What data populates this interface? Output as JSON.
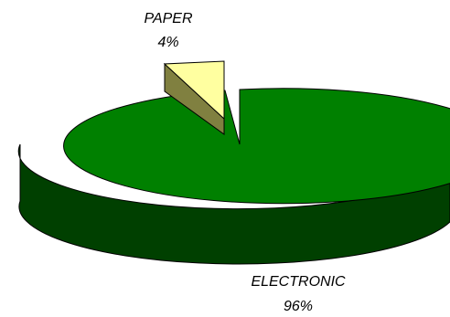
{
  "chart_data": {
    "type": "pie",
    "title": "",
    "style": "3d-exploded",
    "legend": "none",
    "slices": [
      {
        "label": "ELECTRONIC",
        "value": 96,
        "value_label": "96%",
        "color_top": "#008000",
        "color_side": "#004000"
      },
      {
        "label": "PAPER",
        "value": 4,
        "value_label": "4%",
        "color_top": "#ffffa0",
        "color_side": "#808040",
        "exploded": true
      }
    ]
  }
}
